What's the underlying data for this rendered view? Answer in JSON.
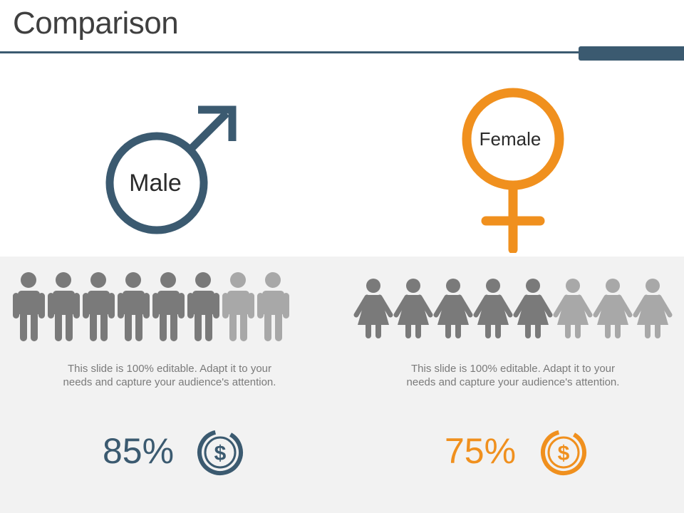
{
  "title": "Comparison",
  "colors": {
    "male": "#3b5a70",
    "female": "#f0901e",
    "person_dark": "#7a7a7a",
    "person_light": "#a8a8a8",
    "band": "#f2f2f2"
  },
  "male": {
    "label": "Male",
    "description_line1": "This slide is 100% editable. Adapt it to your",
    "description_line2": "needs and capture your audience's attention.",
    "percentage": "85%",
    "icon_count": 8,
    "highlighted_count": 6,
    "icon": "dollar-coin-icon"
  },
  "female": {
    "label": "Female",
    "description_line1": "This slide is 100% editable. Adapt it to your",
    "description_line2": "needs and capture your audience's attention.",
    "percentage": "75%",
    "icon_count": 8,
    "highlighted_count": 5,
    "icon": "dollar-coin-icon"
  }
}
